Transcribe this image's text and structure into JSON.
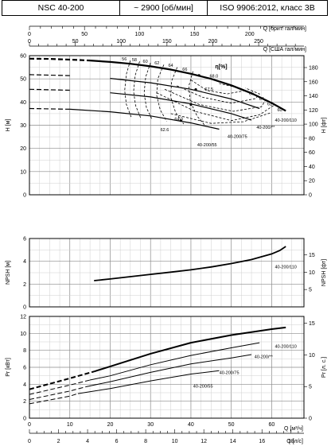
{
  "header": {
    "model": "NSC 40-200",
    "speed": "~ 2900 [об/мин]",
    "standard": "ISO 9906:2012, класс 3В"
  },
  "axes": {
    "q_top_imp_label": "Q [брит. гал/мин]",
    "q_top_us_label": "Q [США гал/мин]",
    "q_bottom_m3h_label": "Q [м³/ч]",
    "q_bottom_ls_label": "Q [л/с]",
    "h_left_label": "H [м]",
    "h_right_label": "H [фт]",
    "npsh_left_label": "NPSH [м]",
    "npsh_right_label": "NPSH [фт]",
    "p_left_label": "Pr [кВт]",
    "p_right_label": "Pr [л. с.]",
    "eff_label": "η[%]"
  },
  "chart_data": [
    {
      "type": "line",
      "name": "head",
      "x_unit": "м³/ч",
      "y_unit": "м",
      "xlim": [
        0,
        68
      ],
      "ylim": [
        0,
        60
      ],
      "x_ticks": [
        0,
        10,
        20,
        30,
        40,
        50,
        60
      ],
      "y_ticks": [
        0,
        10,
        20,
        30,
        40,
        50,
        60
      ],
      "top_imp_ticks": [
        0,
        50,
        100,
        150,
        200,
        250
      ],
      "top_us_ticks": [
        0,
        50,
        100,
        150,
        200,
        250
      ],
      "right_ft_ticks": [
        0,
        20,
        40,
        60,
        80,
        100,
        120,
        140,
        160,
        180
      ],
      "grid": true,
      "series": [
        {
          "name": "40-200/110",
          "x": [
            0,
            5,
            10,
            15,
            20,
            25,
            30,
            35,
            40,
            45,
            50,
            55,
            60,
            63.5
          ],
          "y": [
            58.7,
            58.6,
            58.3,
            57.9,
            57.3,
            56.5,
            55.4,
            54.0,
            52.2,
            50.0,
            47.2,
            43.8,
            39.6,
            36.2
          ],
          "dash_until": 15
        },
        {
          "name": "40-200/**",
          "x": [
            0,
            10,
            20,
            30,
            40,
            50,
            57
          ],
          "y": [
            51.8,
            51.4,
            50.2,
            48.3,
            45.5,
            41.3,
            37.2
          ],
          "dash_until": 13
        },
        {
          "name": "40-200/75",
          "x": [
            0,
            10,
            20,
            30,
            40,
            50,
            55
          ],
          "y": [
            45.5,
            45.1,
            44.0,
            42.2,
            39.2,
            35.0,
            32.2
          ],
          "dash_until": 12
        },
        {
          "name": "40-200/55",
          "x": [
            0,
            10,
            20,
            30,
            40,
            47
          ],
          "y": [
            37.2,
            36.9,
            35.8,
            34.0,
            31.0,
            28.3
          ],
          "dash_until": 10
        }
      ],
      "efficiency_labels": [
        "56",
        "58",
        "60",
        "62",
        "64",
        "66",
        "68.0",
        "67.5",
        "66",
        "64",
        "62",
        "60",
        "64.0",
        "62.6"
      ],
      "efficiency_points": [
        {
          "x": 23.5,
          "y": 58.0
        },
        {
          "x": 26.0,
          "y": 57.6
        },
        {
          "x": 28.7,
          "y": 57.0
        },
        {
          "x": 31.6,
          "y": 56.3
        },
        {
          "x": 35.0,
          "y": 55.2
        },
        {
          "x": 38.5,
          "y": 53.5
        },
        {
          "x": 45.7,
          "y": 50.5
        },
        {
          "x": 44.5,
          "y": 45.0
        },
        {
          "x": 55.0,
          "y": 43.0
        },
        {
          "x": 57.5,
          "y": 40.8
        },
        {
          "x": 59.5,
          "y": 38.6
        },
        {
          "x": 62.0,
          "y": 36.0
        },
        {
          "x": 37.0,
          "y": 32.0
        },
        {
          "x": 33.5,
          "y": 27.5
        }
      ],
      "efficiency_dashes": [
        {
          "x": [
            25.0,
            24.0,
            23.6,
            24.0,
            25.2
          ],
          "y": [
            57.9,
            52.0,
            45.0,
            39.0,
            33.5
          ]
        },
        {
          "x": [
            27.3,
            26.2,
            25.8,
            26.3,
            27.6
          ],
          "y": [
            57.5,
            51.5,
            44.5,
            38.5,
            33.0
          ]
        },
        {
          "x": [
            30.0,
            28.8,
            28.4,
            29.0,
            30.4
          ],
          "y": [
            56.9,
            50.8,
            43.8,
            37.5,
            32.4
          ]
        },
        {
          "x": [
            33.3,
            31.8,
            31.5,
            32.4,
            34.0
          ],
          "y": [
            56.1,
            50.0,
            43.0,
            36.6,
            31.7
          ]
        },
        {
          "x": [
            36.6,
            35.2,
            35.0,
            36.2,
            38.2
          ],
          "y": [
            55.0,
            49.0,
            42.0,
            35.5,
            30.5
          ]
        },
        {
          "x": [
            40.5,
            39.5,
            39.8,
            41.5,
            43.5
          ],
          "y": [
            53.2,
            47.0,
            40.5,
            34.0,
            29.8
          ]
        },
        {
          "x": [
            40.0,
            44.0,
            49.0,
            53.5,
            52.0,
            47.0
          ],
          "y": [
            49.5,
            45.0,
            43.5,
            45.0,
            46.0,
            48.0
          ]
        },
        {
          "x": [
            36.5,
            43.0,
            50.0,
            56.0,
            57.0,
            53.5
          ],
          "y": [
            47.0,
            42.0,
            39.5,
            41.5,
            43.5,
            46.0
          ]
        },
        {
          "x": [
            33.5,
            42.0,
            50.5,
            57.5,
            58.5
          ],
          "y": [
            45.5,
            39.0,
            36.0,
            38.0,
            41.0
          ]
        },
        {
          "x": [
            31.5,
            41.0,
            50.0,
            57.0,
            60.5
          ],
          "y": [
            44.0,
            36.0,
            32.0,
            34.5,
            38.5
          ]
        },
        {
          "x": [
            35.0,
            45.0,
            53.0,
            60.0
          ],
          "y": [
            35.0,
            30.8,
            31.5,
            35.5
          ]
        }
      ],
      "bep_points": [
        {
          "x": 42.0,
          "y": 51.5
        },
        {
          "x": 41.2,
          "y": 45.4
        },
        {
          "x": 40.0,
          "y": 38.9
        },
        {
          "x": 37.5,
          "y": 32.0
        }
      ]
    },
    {
      "type": "line",
      "name": "npsh",
      "x_unit": "м³/ч",
      "y_unit": "м",
      "xlim": [
        0,
        68
      ],
      "ylim": [
        0,
        6
      ],
      "y_ticks": [
        0,
        2,
        4,
        6
      ],
      "right_ft_ticks": [
        5,
        10,
        15
      ],
      "grid": true,
      "series": [
        {
          "name": "40-200/110",
          "x": [
            16,
            20,
            25,
            30,
            35,
            40,
            45,
            50,
            55,
            60,
            62,
            63.5
          ],
          "y": [
            2.3,
            2.45,
            2.65,
            2.85,
            3.05,
            3.25,
            3.5,
            3.8,
            4.15,
            4.65,
            4.95,
            5.3
          ]
        }
      ]
    },
    {
      "type": "line",
      "name": "power",
      "x_unit": "м³/ч",
      "y_unit": "кВт",
      "xlim": [
        0,
        68
      ],
      "ylim": [
        0,
        12
      ],
      "y_ticks": [
        0,
        2,
        4,
        6,
        8,
        10,
        12
      ],
      "right_hp_ticks": [
        0,
        5,
        10,
        15
      ],
      "bottom_ls_ticks": [
        0,
        2,
        4,
        6,
        8,
        10,
        12,
        14,
        16,
        18
      ],
      "grid": true,
      "series": [
        {
          "name": "40-200/110",
          "x": [
            0,
            10,
            16,
            20,
            30,
            40,
            50,
            60,
            63.5
          ],
          "y": [
            3.4,
            4.7,
            5.5,
            6.1,
            7.6,
            8.9,
            9.8,
            10.5,
            10.7
          ],
          "dash_until": 16
        },
        {
          "name": "40-200/**",
          "x": [
            0,
            10,
            15,
            20,
            30,
            40,
            50,
            57
          ],
          "y": [
            2.8,
            3.9,
            4.5,
            5.0,
            6.3,
            7.4,
            8.3,
            8.9
          ],
          "dash_until": 15
        },
        {
          "name": "40-200/75",
          "x": [
            0,
            10,
            14,
            20,
            30,
            40,
            50,
            55
          ],
          "y": [
            2.2,
            3.2,
            3.7,
            4.3,
            5.4,
            6.4,
            7.1,
            7.5
          ],
          "dash_until": 14
        },
        {
          "name": "40-200/55",
          "x": [
            0,
            10,
            12,
            20,
            30,
            40,
            47
          ],
          "y": [
            1.7,
            2.6,
            2.9,
            3.5,
            4.4,
            5.2,
            5.6
          ],
          "dash_until": 12
        }
      ]
    }
  ]
}
